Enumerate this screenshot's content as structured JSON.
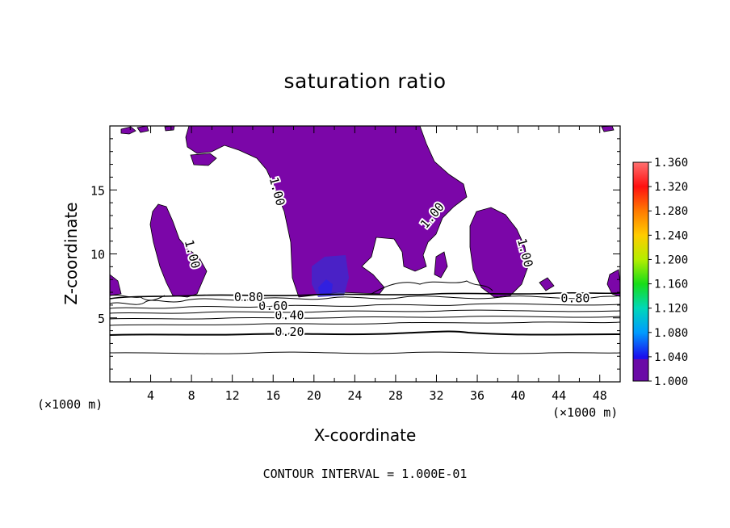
{
  "chart_data": {
    "type": "heatmap",
    "title": "saturation ratio",
    "xlabel": "X-coordinate",
    "ylabel": "Z-coordinate",
    "x_units": "(×1000 m)",
    "xlim": [
      0,
      50
    ],
    "ylim": [
      0,
      20
    ],
    "x_ticks": [
      4,
      8,
      12,
      16,
      20,
      24,
      28,
      32,
      36,
      40,
      44,
      48
    ],
    "y_ticks": [
      5,
      10,
      15
    ],
    "contour_interval_text": "CONTOUR INTERVAL = 1.000E-01",
    "contour_labels": [
      {
        "text": "0.20",
        "x": 17.6,
        "z": 3.6
      },
      {
        "text": "0.40",
        "x": 17.6,
        "z": 4.9
      },
      {
        "text": "0.60",
        "x": 16.0,
        "z": 5.6
      },
      {
        "text": "0.80",
        "x": 13.6,
        "z": 6.3
      },
      {
        "text": "0.80",
        "x": 45.6,
        "z": 6.2
      },
      {
        "text": "1.00",
        "x": 16.0,
        "z": 14.8
      },
      {
        "text": "1.00",
        "x": 31.9,
        "z": 12.8
      },
      {
        "text": "1.00",
        "x": 40.3,
        "z": 10.0
      },
      {
        "text": "1.00",
        "x": 7.7,
        "z": 9.9
      }
    ],
    "colorbar": {
      "ticks": [
        "1.360",
        "1.320",
        "1.280",
        "1.240",
        "1.200",
        "1.160",
        "1.120",
        "1.080",
        "1.040",
        "1.000"
      ],
      "colors": [
        "#ff7070",
        "#ff1010",
        "#ff7a00",
        "#ffcc00",
        "#b4ee00",
        "#18dd18",
        "#00d8b8",
        "#009cff",
        "#1a10ee",
        "#6a0aa6"
      ]
    },
    "fill_color": "#7b06a8",
    "grid": false,
    "legend": "colorbar-right"
  }
}
